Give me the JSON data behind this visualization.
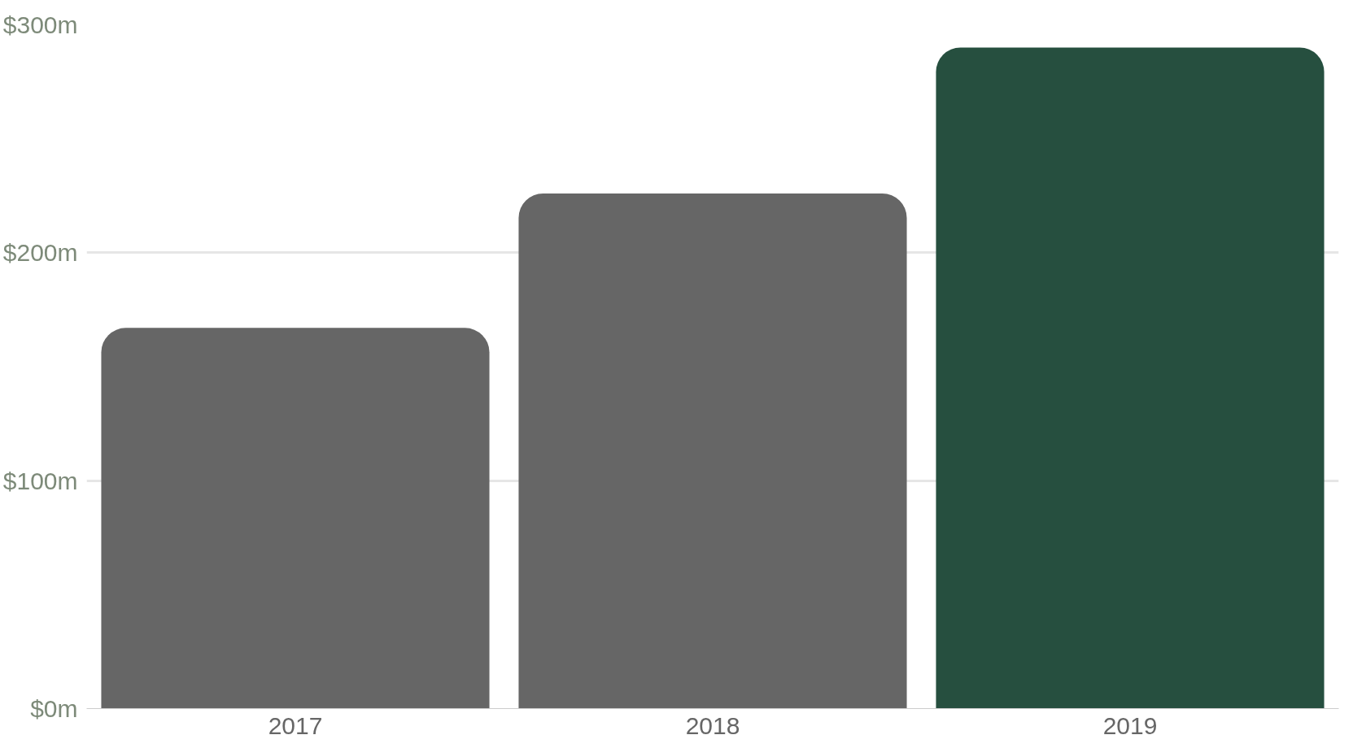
{
  "chart_data": {
    "type": "bar",
    "categories": [
      "2017",
      "2018",
      "2019"
    ],
    "values": [
      167,
      226,
      290
    ],
    "colors": [
      "#666666",
      "#666666",
      "#264f3f"
    ],
    "ylim": [
      0,
      300
    ],
    "yticks": [
      {
        "value": 0,
        "label": "$0m"
      },
      {
        "value": 100,
        "label": "$100m"
      },
      {
        "value": 200,
        "label": "$200m"
      },
      {
        "value": 300,
        "label": "$300m"
      }
    ],
    "grid": "y"
  }
}
